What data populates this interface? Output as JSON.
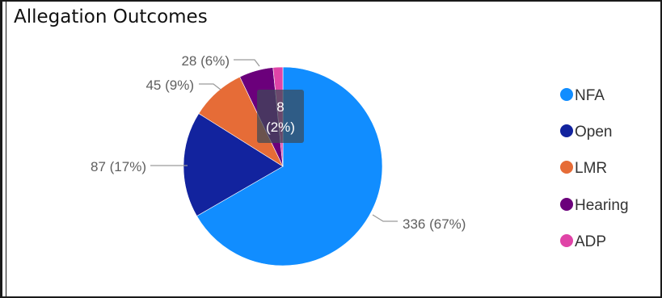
{
  "title": "Allegation Outcomes",
  "chart_data": {
    "type": "pie",
    "title": "Allegation Outcomes",
    "slices": [
      {
        "name": "NFA",
        "value": 336,
        "percent": "67%",
        "color": "#118DFF"
      },
      {
        "name": "Open",
        "value": 87,
        "percent": "17%",
        "color": "#12239E"
      },
      {
        "name": "LMR",
        "value": 45,
        "percent": "9%",
        "color": "#E66C37"
      },
      {
        "name": "Hearing",
        "value": 28,
        "percent": "6%",
        "color": "#6B007B"
      },
      {
        "name": "ADP",
        "value": 8,
        "percent": "2%",
        "color": "#E044A7"
      }
    ],
    "data_labels": [
      "336 (67%)",
      "87 (17%)",
      "45 (9%)",
      "28 (6%)"
    ],
    "tooltip": {
      "value": "8",
      "percent": "(2%)"
    },
    "legend": {
      "position": "right",
      "entries": [
        "NFA",
        "Open",
        "LMR",
        "Hearing",
        "ADP"
      ]
    }
  }
}
